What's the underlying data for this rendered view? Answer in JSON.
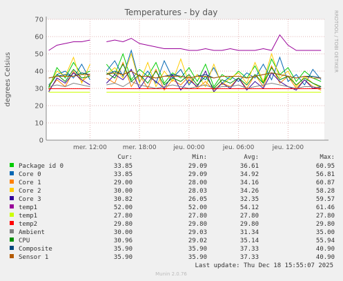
{
  "chart_data": {
    "type": "line",
    "title": "Temperatures - by day",
    "y_label": "degrees Celsius",
    "side_text": "RRDTOOL / TOBI OETIKER",
    "last_update": "Last update: Thu Dec 18 15:55:07 2025",
    "footer": "Munin 2.0.76",
    "grid": true,
    "xlim": [
      6.7,
      40.4
    ],
    "ylim": [
      0,
      70
    ],
    "yticks": [
      0,
      10,
      20,
      30,
      40,
      50,
      60,
      70
    ],
    "xticks": [
      {
        "value": 12,
        "label": "mer. 12:00"
      },
      {
        "value": 18,
        "label": "mer. 18:00"
      },
      {
        "value": 24,
        "label": "jeu. 00:00"
      },
      {
        "value": 30,
        "label": "jeu. 06:00"
      },
      {
        "value": 36,
        "label": "jeu. 12:00"
      }
    ],
    "x": [
      7,
      8,
      9,
      10,
      11,
      12,
      13,
      14,
      15,
      16,
      17,
      18,
      19,
      20,
      21,
      22,
      23,
      24,
      25,
      26,
      27,
      28,
      29,
      30,
      31,
      32,
      33,
      34,
      35,
      36,
      37,
      38,
      39,
      40
    ],
    "series": [
      {
        "name": "Package id 0",
        "color": "#00cc00",
        "values": [
          30,
          42,
          36,
          45,
          38,
          40,
          null,
          44,
          38,
          50,
          35,
          41,
          37,
          45,
          33,
          39,
          36,
          42,
          34,
          44,
          31,
          38,
          35,
          40,
          36,
          43,
          33,
          47,
          38,
          42,
          34,
          40,
          36,
          34
        ]
      },
      {
        "name": "Core 0",
        "color": "#0066b3",
        "values": [
          32,
          38,
          40,
          36,
          44,
          35,
          null,
          40,
          46,
          37,
          52,
          34,
          40,
          33,
          46,
          36,
          41,
          32,
          38,
          35,
          42,
          33,
          37,
          34,
          39,
          36,
          44,
          35,
          48,
          34,
          38,
          32,
          41,
          35
        ]
      },
      {
        "name": "Core 1",
        "color": "#ff8000",
        "values": [
          29,
          35,
          31,
          40,
          34,
          38,
          null,
          36,
          33,
          45,
          31,
          38,
          30,
          41,
          29,
          35,
          32,
          37,
          30,
          34,
          29,
          33,
          31,
          36,
          30,
          38,
          31,
          43,
          33,
          37,
          30,
          35,
          31,
          29
        ]
      },
      {
        "name": "Core 2",
        "color": "#ffcc00",
        "values": [
          31,
          40,
          37,
          48,
          33,
          44,
          null,
          38,
          42,
          36,
          50,
          33,
          45,
          31,
          40,
          34,
          47,
          33,
          38,
          31,
          44,
          32,
          36,
          39,
          33,
          45,
          34,
          50,
          36,
          40,
          31,
          37,
          33,
          30
        ]
      },
      {
        "name": "Core 3",
        "color": "#330099",
        "values": [
          28,
          36,
          33,
          39,
          35,
          32,
          null,
          33,
          38,
          35,
          41,
          30,
          37,
          34,
          30,
          38,
          29,
          35,
          31,
          40,
          28,
          33,
          30,
          36,
          29,
          34,
          30,
          39,
          34,
          31,
          29,
          35,
          30,
          31
        ]
      },
      {
        "name": "temp1",
        "color": "#990099",
        "values": [
          52,
          55,
          56,
          57,
          57,
          58,
          null,
          57,
          58,
          57,
          59,
          56,
          55,
          54,
          53,
          53,
          53,
          52,
          52,
          53,
          52,
          52,
          53,
          52,
          52,
          52,
          53,
          52,
          61,
          55,
          52,
          52,
          52,
          52
        ]
      },
      {
        "name": "temp1",
        "color": "#ccff00",
        "values": [
          27.8,
          27.8,
          27.8,
          27.8,
          27.8,
          27.8,
          null,
          27.8,
          27.8,
          27.8,
          27.8,
          27.8,
          27.8,
          27.8,
          27.8,
          27.8,
          27.8,
          27.8,
          27.8,
          27.8,
          27.8,
          27.8,
          27.8,
          27.8,
          27.8,
          27.8,
          27.8,
          27.8,
          27.8,
          27.8,
          27.8,
          27.8,
          27.8,
          27.8
        ]
      },
      {
        "name": "temp2",
        "color": "#ff0000",
        "values": [
          29.8,
          29.8,
          29.8,
          29.8,
          29.8,
          29.8,
          null,
          29.8,
          29.8,
          29.8,
          29.8,
          29.8,
          29.8,
          29.8,
          29.8,
          29.8,
          29.8,
          29.8,
          29.8,
          29.8,
          29.8,
          29.8,
          29.8,
          29.8,
          29.8,
          29.8,
          29.8,
          29.8,
          29.8,
          29.8,
          29.8,
          29.8,
          29.8,
          29.8
        ]
      },
      {
        "name": "Ambient",
        "color": "#808080",
        "values": [
          31,
          32,
          31,
          33,
          32,
          31,
          null,
          32,
          33,
          31,
          34,
          32,
          31,
          30,
          31,
          32,
          31,
          30,
          31,
          32,
          30,
          31,
          31,
          32,
          30,
          31,
          32,
          33,
          32,
          31,
          30,
          31,
          31,
          30
        ]
      },
      {
        "name": "CPU",
        "color": "#008f00",
        "values": [
          31,
          38,
          34,
          41,
          36,
          37,
          null,
          39,
          36,
          44,
          34,
          38,
          33,
          40,
          32,
          36,
          34,
          38,
          32,
          37,
          30,
          35,
          33,
          36,
          32,
          38,
          33,
          42,
          35,
          37,
          32,
          36,
          33,
          31
        ]
      },
      {
        "name": "Composite",
        "color": "#00487d",
        "values": [
          36,
          37,
          38,
          37,
          39,
          38,
          null,
          38,
          40,
          38,
          40,
          37,
          37,
          36,
          37,
          38,
          37,
          36,
          37,
          38,
          36,
          37,
          37,
          37,
          36,
          37,
          38,
          39,
          38,
          37,
          36,
          37,
          37,
          36
        ]
      },
      {
        "name": "Sensor 1",
        "color": "#b35a00",
        "values": [
          36,
          37,
          37,
          37,
          38,
          38,
          null,
          38,
          39,
          38,
          40,
          37,
          37,
          36,
          37,
          37,
          37,
          36,
          37,
          37,
          36,
          37,
          37,
          37,
          36,
          37,
          38,
          39,
          38,
          37,
          36,
          37,
          36,
          36
        ]
      }
    ],
    "legend_stats": {
      "headers": [
        "Cur:",
        "Min:",
        "Avg:",
        "Max:"
      ],
      "rows": [
        [
          "33.85",
          "29.09",
          "36.61",
          "60.95"
        ],
        [
          "33.85",
          "29.09",
          "34.92",
          "56.81"
        ],
        [
          "29.00",
          "28.00",
          "34.16",
          "60.87"
        ],
        [
          "30.00",
          "28.03",
          "34.26",
          "58.28"
        ],
        [
          "30.82",
          "26.05",
          "32.35",
          "59.57"
        ],
        [
          "52.00",
          "52.00",
          "54.12",
          "61.46"
        ],
        [
          "27.80",
          "27.80",
          "27.80",
          "27.80"
        ],
        [
          "29.80",
          "29.80",
          "29.80",
          "29.80"
        ],
        [
          "30.00",
          "29.03",
          "31.34",
          "35.00"
        ],
        [
          "30.96",
          "29.02",
          "35.14",
          "55.94"
        ],
        [
          "35.90",
          "35.90",
          "37.33",
          "40.90"
        ],
        [
          "35.90",
          "35.90",
          "37.33",
          "40.90"
        ]
      ]
    }
  }
}
